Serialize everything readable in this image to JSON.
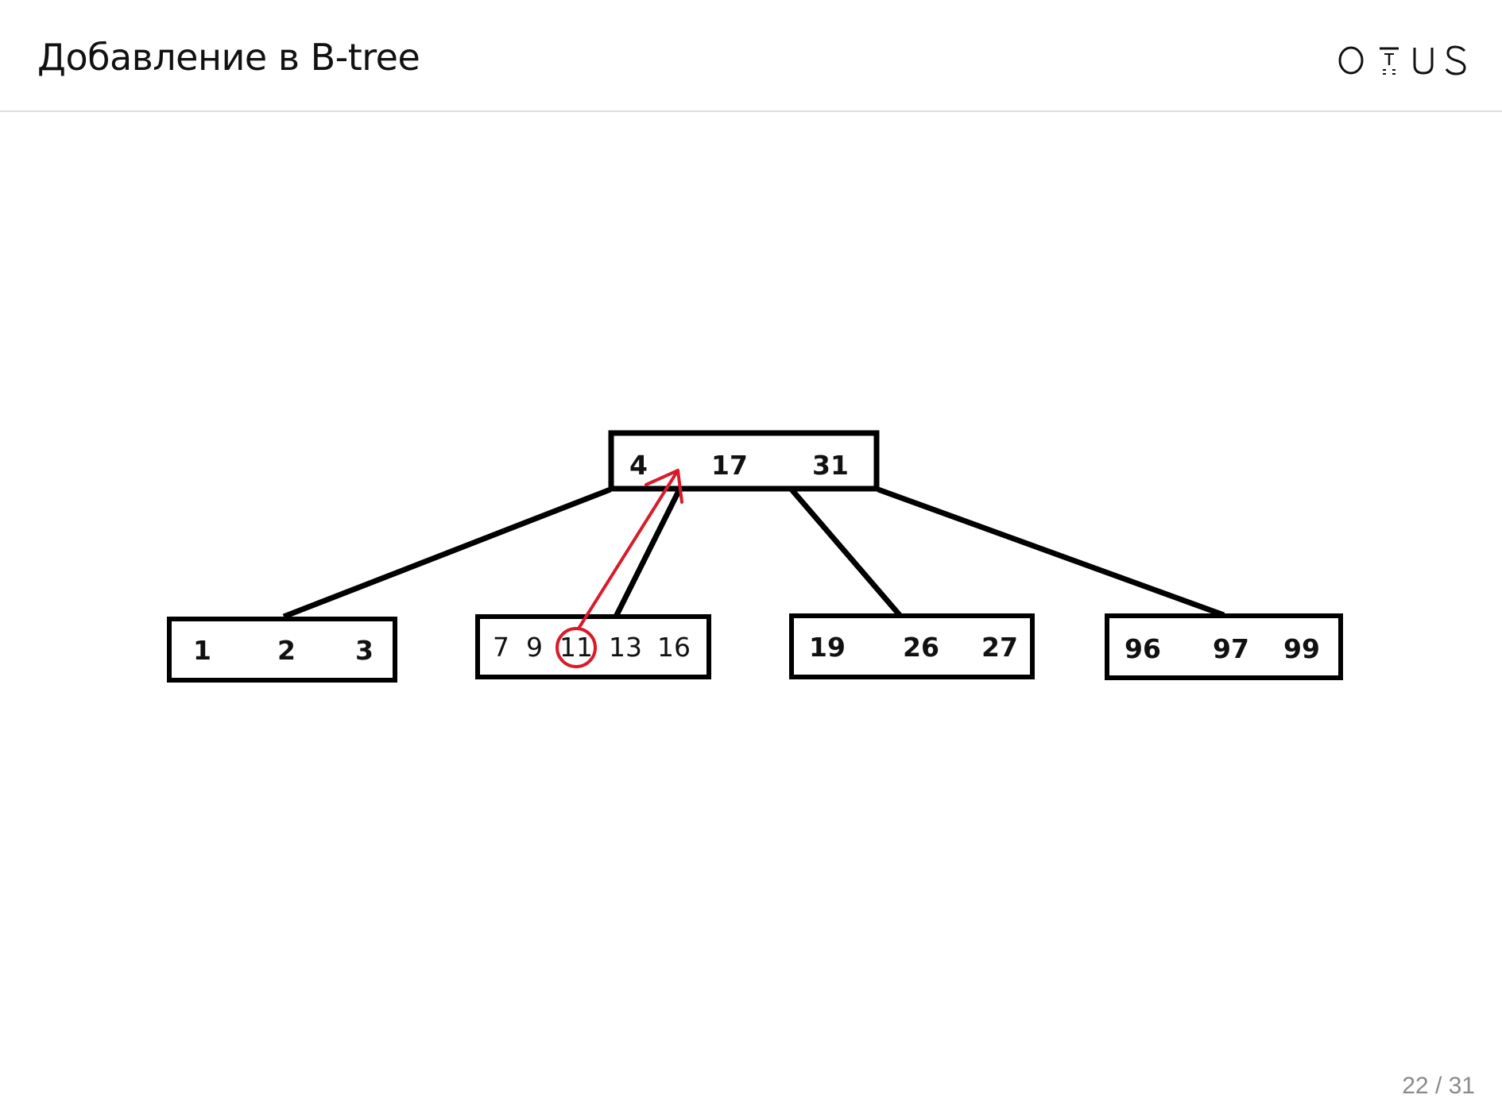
{
  "header": {
    "title": "Добавление в B-tree",
    "logo_text": "OTUS"
  },
  "diagram": {
    "root": {
      "keys": [
        "4",
        "17",
        "31"
      ]
    },
    "leaves": [
      {
        "keys": [
          "1",
          "2",
          "3"
        ]
      },
      {
        "keys": [
          "7",
          "9",
          "11",
          "13",
          "16"
        ],
        "highlighted_key": "11"
      },
      {
        "keys": [
          "19",
          "26",
          "27"
        ]
      },
      {
        "keys": [
          "96",
          "97",
          "99"
        ]
      }
    ],
    "colors": {
      "node_border": "#000000",
      "highlight": "#d91a2a"
    }
  },
  "footer": {
    "page": "22 / 31"
  }
}
